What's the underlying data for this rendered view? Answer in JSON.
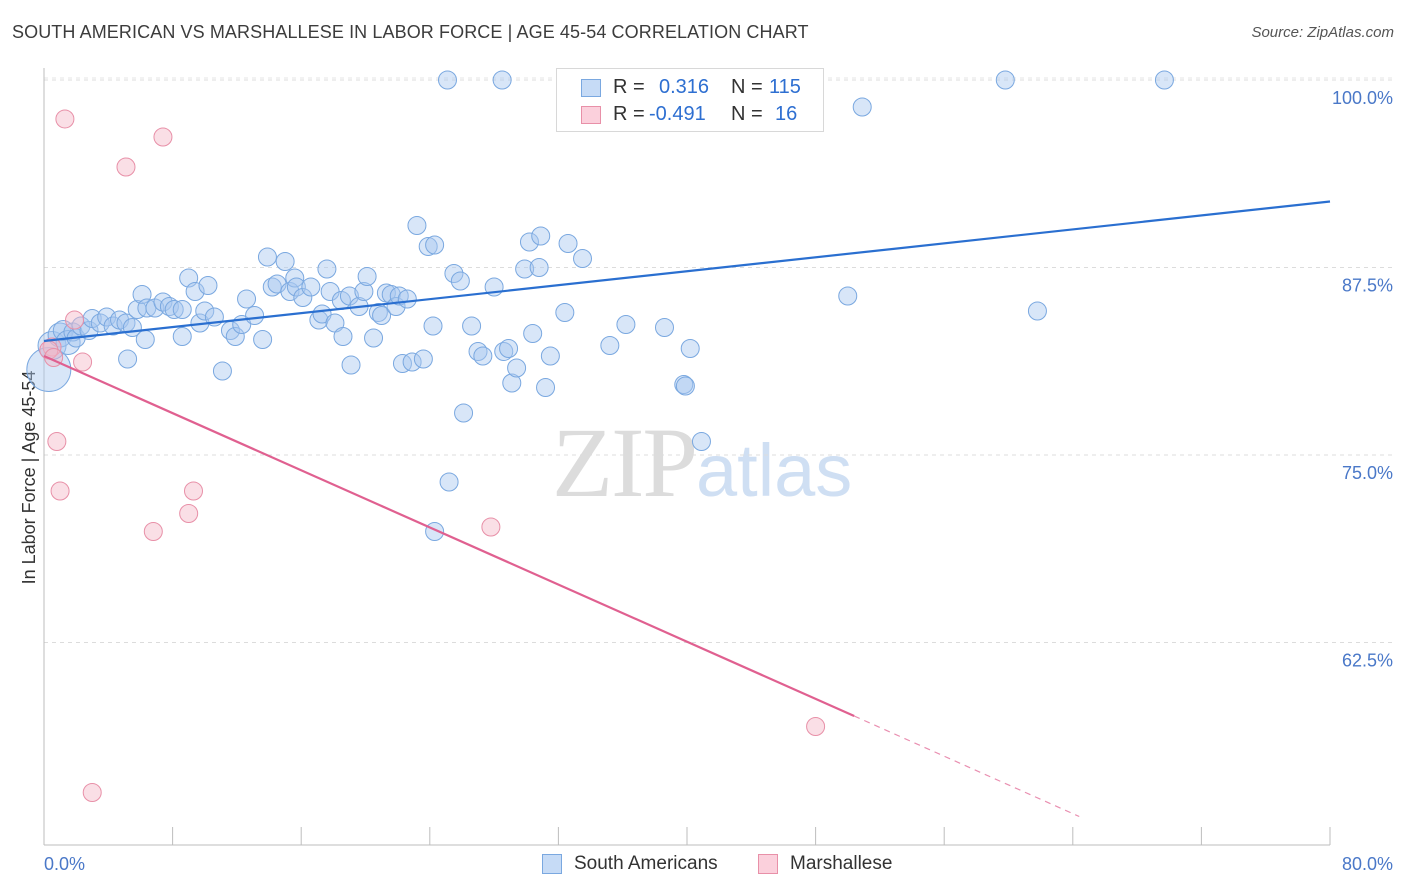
{
  "header": {
    "title": "SOUTH AMERICAN VS MARSHALLESE IN LABOR FORCE | AGE 45-54 CORRELATION CHART",
    "source": "Source: ZipAtlas.com"
  },
  "watermark": {
    "zip": "ZIP",
    "atlas": "atlas"
  },
  "legend": {
    "rows": [
      {
        "r_label": "R = ",
        "r_value": "0.316",
        "n_label": "N = ",
        "n_value": "115",
        "color": "#a8c8f0"
      },
      {
        "r_label": "R = ",
        "r_value": "-0.491",
        "n_label": "N = ",
        "n_value": "16",
        "color": "#f5b8c8"
      }
    ]
  },
  "bottom_legend": {
    "items": [
      {
        "label": "South Americans",
        "color": "#a8c8f0"
      },
      {
        "label": "Marshallese",
        "color": "#f5b8c8"
      }
    ]
  },
  "chart_data": {
    "type": "scatter",
    "title": "SOUTH AMERICAN VS MARSHALLESE IN LABOR FORCE | AGE 45-54 CORRELATION CHART",
    "xlabel": "",
    "ylabel": "In Labor Force | Age 45-54",
    "xlim": [
      0,
      80
    ],
    "ylim": [
      49,
      100
    ],
    "x_tick_labels": [
      "0.0%",
      "80.0%"
    ],
    "y_ticks": [
      62.5,
      75.0,
      87.5,
      100.0
    ],
    "y_tick_labels": [
      "62.5%",
      "75.0%",
      "87.5%",
      "100.0%"
    ],
    "grid": "horizontal dashed",
    "legend_position": "top-center",
    "series": [
      {
        "name": "South Americans",
        "color": "#a8c8f0",
        "stroke": "#7aa8e0",
        "trend": {
          "x": [
            0,
            80
          ],
          "y": [
            82.6,
            91.9
          ],
          "color": "#2a6fd0"
        },
        "points": [
          [
            0.3,
            80.7,
            22
          ],
          [
            0.5,
            82.3,
            14
          ],
          [
            1.0,
            83.0,
            12
          ],
          [
            1.2,
            83.3,
            10
          ],
          [
            1.5,
            82.5,
            12
          ],
          [
            1.8,
            83.2,
            9
          ],
          [
            2.0,
            82.8,
            9
          ],
          [
            2.3,
            83.6,
            9
          ],
          [
            2.8,
            83.3,
            9
          ],
          [
            3.0,
            84.1,
            9
          ],
          [
            3.5,
            83.8,
            9
          ],
          [
            3.9,
            84.2,
            9
          ],
          [
            4.3,
            83.6,
            9
          ],
          [
            4.7,
            84.0,
            9
          ],
          [
            5.1,
            83.8,
            9
          ],
          [
            5.2,
            81.4,
            9
          ],
          [
            5.5,
            83.5,
            9
          ],
          [
            5.8,
            84.7,
            9
          ],
          [
            6.1,
            85.7,
            9
          ],
          [
            6.4,
            84.8,
            9
          ],
          [
            6.3,
            82.7,
            9
          ],
          [
            6.9,
            84.8,
            9
          ],
          [
            7.4,
            85.2,
            9
          ],
          [
            7.8,
            84.9,
            9
          ],
          [
            8.1,
            84.7,
            9
          ],
          [
            8.6,
            84.7,
            9
          ],
          [
            8.6,
            82.9,
            9
          ],
          [
            9.0,
            86.8,
            9
          ],
          [
            9.4,
            85.9,
            9
          ],
          [
            9.7,
            83.8,
            9
          ],
          [
            10.0,
            84.6,
            9
          ],
          [
            10.2,
            86.3,
            9
          ],
          [
            10.6,
            84.2,
            9
          ],
          [
            11.1,
            80.6,
            9
          ],
          [
            11.6,
            83.3,
            9
          ],
          [
            11.9,
            82.9,
            9
          ],
          [
            12.3,
            83.7,
            9
          ],
          [
            12.6,
            85.4,
            9
          ],
          [
            13.1,
            84.3,
            9
          ],
          [
            13.6,
            82.7,
            9
          ],
          [
            13.9,
            88.2,
            9
          ],
          [
            14.2,
            86.2,
            9
          ],
          [
            14.5,
            86.4,
            9
          ],
          [
            15.0,
            87.9,
            9
          ],
          [
            15.3,
            85.9,
            9
          ],
          [
            15.6,
            86.8,
            9
          ],
          [
            15.7,
            86.2,
            9
          ],
          [
            16.1,
            85.5,
            9
          ],
          [
            16.6,
            86.2,
            9
          ],
          [
            17.1,
            84.0,
            9
          ],
          [
            17.3,
            84.4,
            9
          ],
          [
            17.6,
            87.4,
            9
          ],
          [
            17.8,
            85.9,
            9
          ],
          [
            18.1,
            83.8,
            9
          ],
          [
            18.5,
            85.3,
            9
          ],
          [
            18.6,
            82.9,
            9
          ],
          [
            19.0,
            85.6,
            9
          ],
          [
            19.1,
            81.0,
            9
          ],
          [
            19.6,
            84.9,
            9
          ],
          [
            19.9,
            85.9,
            9
          ],
          [
            20.1,
            86.9,
            9
          ],
          [
            20.5,
            82.8,
            9
          ],
          [
            20.8,
            84.5,
            9
          ],
          [
            21.0,
            84.3,
            9
          ],
          [
            21.3,
            85.8,
            9
          ],
          [
            21.6,
            85.7,
            9
          ],
          [
            21.9,
            84.9,
            9
          ],
          [
            22.1,
            85.6,
            9
          ],
          [
            22.3,
            81.1,
            9
          ],
          [
            22.6,
            85.4,
            9
          ],
          [
            22.9,
            81.2,
            9
          ],
          [
            23.2,
            90.3,
            9
          ],
          [
            23.6,
            81.4,
            9
          ],
          [
            23.9,
            88.9,
            9
          ],
          [
            24.2,
            83.6,
            9
          ],
          [
            24.3,
            89.0,
            9
          ],
          [
            25.1,
            100.0,
            9
          ],
          [
            25.5,
            87.1,
            9
          ],
          [
            25.9,
            86.6,
            9
          ],
          [
            26.1,
            77.8,
            9
          ],
          [
            26.6,
            83.6,
            9
          ],
          [
            27.0,
            81.9,
            9
          ],
          [
            27.3,
            81.6,
            9
          ],
          [
            28.0,
            86.2,
            9
          ],
          [
            28.6,
            81.9,
            9
          ],
          [
            28.9,
            82.1,
            9
          ],
          [
            29.1,
            79.8,
            9
          ],
          [
            29.4,
            80.8,
            9
          ],
          [
            29.9,
            87.4,
            9
          ],
          [
            30.2,
            89.2,
            9
          ],
          [
            30.4,
            83.1,
            9
          ],
          [
            30.8,
            87.5,
            9
          ],
          [
            30.9,
            89.6,
            9
          ],
          [
            31.2,
            79.5,
            9
          ],
          [
            31.5,
            81.6,
            9
          ],
          [
            32.4,
            84.5,
            9
          ],
          [
            32.6,
            89.1,
            9
          ],
          [
            33.5,
            88.1,
            9
          ],
          [
            35.2,
            82.3,
            9
          ],
          [
            36.2,
            83.7,
            9
          ],
          [
            37.0,
            97.6,
            9
          ],
          [
            38.6,
            83.5,
            9
          ],
          [
            39.8,
            79.7,
            9
          ],
          [
            39.9,
            79.6,
            9
          ],
          [
            40.2,
            82.1,
            9
          ],
          [
            40.9,
            75.9,
            9
          ],
          [
            50.0,
            85.6,
            9
          ],
          [
            50.9,
            98.2,
            9
          ],
          [
            59.8,
            100.0,
            9
          ],
          [
            61.8,
            84.6,
            9
          ],
          [
            69.7,
            100.0,
            9
          ],
          [
            37.0,
            100.0,
            9
          ],
          [
            28.5,
            100.0,
            9
          ],
          [
            24.3,
            69.9,
            9
          ],
          [
            25.2,
            73.2,
            9
          ]
        ]
      },
      {
        "name": "Marshallese",
        "color": "#f5b8c8",
        "stroke": "#e890a8",
        "trend": {
          "x": [
            0,
            50.4
          ],
          "y": [
            81.6,
            57.6
          ],
          "dashed_to": [
            64.4,
            50.9
          ],
          "color": "#e06090"
        },
        "points": [
          [
            0.5,
            82.2,
            9
          ],
          [
            0.8,
            75.9,
            9
          ],
          [
            1.0,
            72.6,
            9
          ],
          [
            1.3,
            97.4,
            9
          ],
          [
            1.9,
            84.0,
            9
          ],
          [
            2.4,
            81.2,
            9
          ],
          [
            3.0,
            52.5,
            9
          ],
          [
            5.1,
            94.2,
            9
          ],
          [
            6.8,
            69.9,
            9
          ],
          [
            7.4,
            96.2,
            9
          ],
          [
            9.0,
            71.1,
            9
          ],
          [
            9.3,
            72.6,
            9
          ],
          [
            27.8,
            70.2,
            9
          ],
          [
            48.0,
            56.9,
            9
          ],
          [
            0.3,
            82.0,
            9
          ],
          [
            0.6,
            81.5,
            9
          ]
        ]
      }
    ]
  }
}
